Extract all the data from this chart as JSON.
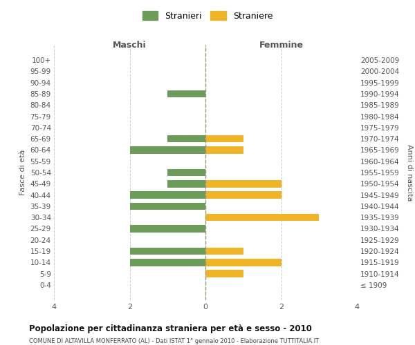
{
  "age_groups": [
    "100+",
    "95-99",
    "90-94",
    "85-89",
    "80-84",
    "75-79",
    "70-74",
    "65-69",
    "60-64",
    "55-59",
    "50-54",
    "45-49",
    "40-44",
    "35-39",
    "30-34",
    "25-29",
    "20-24",
    "15-19",
    "10-14",
    "5-9",
    "0-4"
  ],
  "birth_years": [
    "≤ 1909",
    "1910-1914",
    "1915-1919",
    "1920-1924",
    "1925-1929",
    "1930-1934",
    "1935-1939",
    "1940-1944",
    "1945-1949",
    "1950-1954",
    "1955-1959",
    "1960-1964",
    "1965-1969",
    "1970-1974",
    "1975-1979",
    "1980-1984",
    "1985-1989",
    "1990-1994",
    "1995-1999",
    "2000-2004",
    "2005-2009"
  ],
  "maschi": [
    0,
    0,
    0,
    1,
    0,
    0,
    0,
    1,
    2,
    0,
    1,
    1,
    2,
    2,
    0,
    2,
    0,
    2,
    2,
    0,
    0
  ],
  "femmine": [
    0,
    0,
    0,
    0,
    0,
    0,
    0,
    1,
    1,
    0,
    0,
    2,
    2,
    0,
    3,
    0,
    0,
    1,
    2,
    1,
    0
  ],
  "maschi_color": "#6d9b5a",
  "femmine_color": "#f0b429",
  "title": "Popolazione per cittadinanza straniera per età e sesso - 2010",
  "subtitle": "COMUNE DI ALTAVILLA MONFERRATO (AL) - Dati ISTAT 1° gennaio 2010 - Elaborazione TUTTITALIA.IT",
  "xlabel_left": "Maschi",
  "xlabel_right": "Femmine",
  "ylabel_left": "Fasce di età",
  "ylabel_right": "Anni di nascita",
  "legend_stranieri": "Stranieri",
  "legend_straniere": "Straniere",
  "xlim": 4,
  "background_color": "#ffffff",
  "grid_color": "#cccccc"
}
